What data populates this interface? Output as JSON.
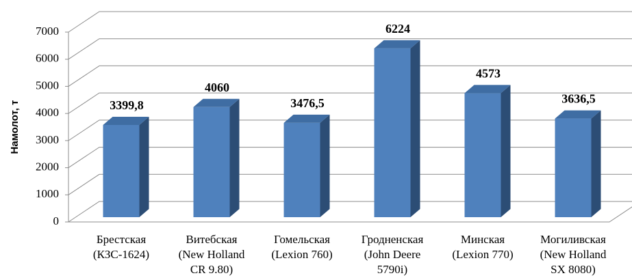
{
  "chart_data": {
    "type": "bar3d",
    "y_axis_label": "Намолот, т",
    "categories": [
      [
        "Брестская",
        "(КЗС-1624)"
      ],
      [
        "Витебская",
        "(New Holland",
        "CR 9.80)"
      ],
      [
        "Гомельская",
        "(Lexion 760)"
      ],
      [
        "Гродненская",
        "(John Deere",
        "5790i)"
      ],
      [
        "Минская",
        "(Lexion 770)"
      ],
      [
        "Могиливская",
        "(New Holland",
        "SX 8080)"
      ]
    ],
    "values": [
      3399.8,
      4060,
      3476.5,
      6224,
      4573,
      3636.5
    ],
    "value_labels": [
      "3399,8",
      "4060",
      "3476,5",
      "6224",
      "4573",
      "3636,5"
    ],
    "color": "#4f81bd",
    "ylim": [
      0,
      7000
    ],
    "yticks": [
      0,
      1000,
      2000,
      3000,
      4000,
      5000,
      6000,
      7000
    ],
    "grid": true
  }
}
